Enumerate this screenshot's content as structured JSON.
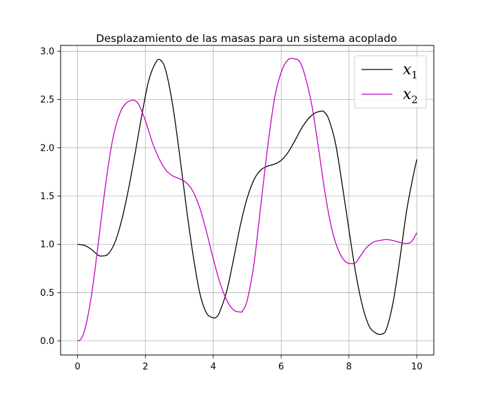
{
  "chart_data": {
    "type": "line",
    "title": "Desplazamiento de las masas para un sistema acoplado",
    "xlabel": "",
    "ylabel": "",
    "xlim": [
      -0.5,
      10.5
    ],
    "ylim": [
      -0.145,
      3.06
    ],
    "x_ticks": [
      "0",
      "2",
      "4",
      "6",
      "8",
      "10"
    ],
    "y_ticks": [
      "0.0",
      "0.5",
      "1.0",
      "1.5",
      "2.0",
      "2.5",
      "3.0"
    ],
    "grid": true,
    "legend_position": "top-right",
    "series": [
      {
        "name": "x",
        "subscript": "1",
        "color": "#000000",
        "x": [
          0,
          0.2,
          0.4,
          0.6,
          0.72,
          0.9,
          1.1,
          1.3,
          1.5,
          1.7,
          1.9,
          2.1,
          2.3,
          2.44,
          2.6,
          2.8,
          3.0,
          3.2,
          3.4,
          3.6,
          3.8,
          4.0,
          4.1,
          4.2,
          4.4,
          4.6,
          4.8,
          5.0,
          5.2,
          5.4,
          5.6,
          5.8,
          6.0,
          6.2,
          6.4,
          6.6,
          6.8,
          7.0,
          7.2,
          7.27,
          7.4,
          7.6,
          7.8,
          8.0,
          8.2,
          8.4,
          8.6,
          8.8,
          8.95,
          9.1,
          9.3,
          9.5,
          9.7,
          9.9,
          10.0
        ],
        "y": [
          1.0,
          0.99,
          0.95,
          0.89,
          0.88,
          0.9,
          1.02,
          1.25,
          1.57,
          1.95,
          2.35,
          2.7,
          2.88,
          2.91,
          2.8,
          2.45,
          1.95,
          1.4,
          0.9,
          0.5,
          0.29,
          0.24,
          0.25,
          0.31,
          0.52,
          0.85,
          1.2,
          1.48,
          1.67,
          1.77,
          1.81,
          1.83,
          1.87,
          1.95,
          2.07,
          2.2,
          2.3,
          2.36,
          2.38,
          2.37,
          2.3,
          2.05,
          1.62,
          1.15,
          0.7,
          0.36,
          0.15,
          0.08,
          0.07,
          0.12,
          0.4,
          0.85,
          1.35,
          1.72,
          1.88
        ]
      },
      {
        "name": "x",
        "subscript": "2",
        "color": "#BF00BF",
        "x": [
          0,
          0.1,
          0.2,
          0.3,
          0.4,
          0.5,
          0.6,
          0.7,
          0.8,
          0.9,
          1.0,
          1.1,
          1.2,
          1.3,
          1.4,
          1.5,
          1.6,
          1.68,
          1.8,
          2.0,
          2.2,
          2.4,
          2.6,
          2.8,
          3.0,
          3.2,
          3.4,
          3.6,
          3.8,
          4.0,
          4.2,
          4.4,
          4.6,
          4.8,
          4.86,
          5.0,
          5.2,
          5.4,
          5.6,
          5.8,
          6.0,
          6.2,
          6.4,
          6.55,
          6.7,
          6.9,
          7.1,
          7.3,
          7.5,
          7.7,
          7.9,
          8.1,
          8.2,
          8.3,
          8.5,
          8.7,
          8.9,
          9.1,
          9.3,
          9.5,
          9.7,
          9.85,
          10.0
        ],
        "y": [
          0.0,
          0.02,
          0.1,
          0.25,
          0.45,
          0.7,
          0.98,
          1.27,
          1.55,
          1.8,
          2.02,
          2.19,
          2.31,
          2.4,
          2.45,
          2.48,
          2.49,
          2.49,
          2.45,
          2.28,
          2.06,
          1.89,
          1.77,
          1.71,
          1.68,
          1.64,
          1.55,
          1.38,
          1.13,
          0.85,
          0.6,
          0.42,
          0.32,
          0.3,
          0.31,
          0.42,
          0.8,
          1.4,
          2.0,
          2.5,
          2.78,
          2.91,
          2.92,
          2.89,
          2.75,
          2.45,
          2.0,
          1.52,
          1.15,
          0.93,
          0.82,
          0.8,
          0.81,
          0.86,
          0.96,
          1.02,
          1.04,
          1.05,
          1.04,
          1.02,
          1.01,
          1.03,
          1.12
        ]
      }
    ]
  }
}
